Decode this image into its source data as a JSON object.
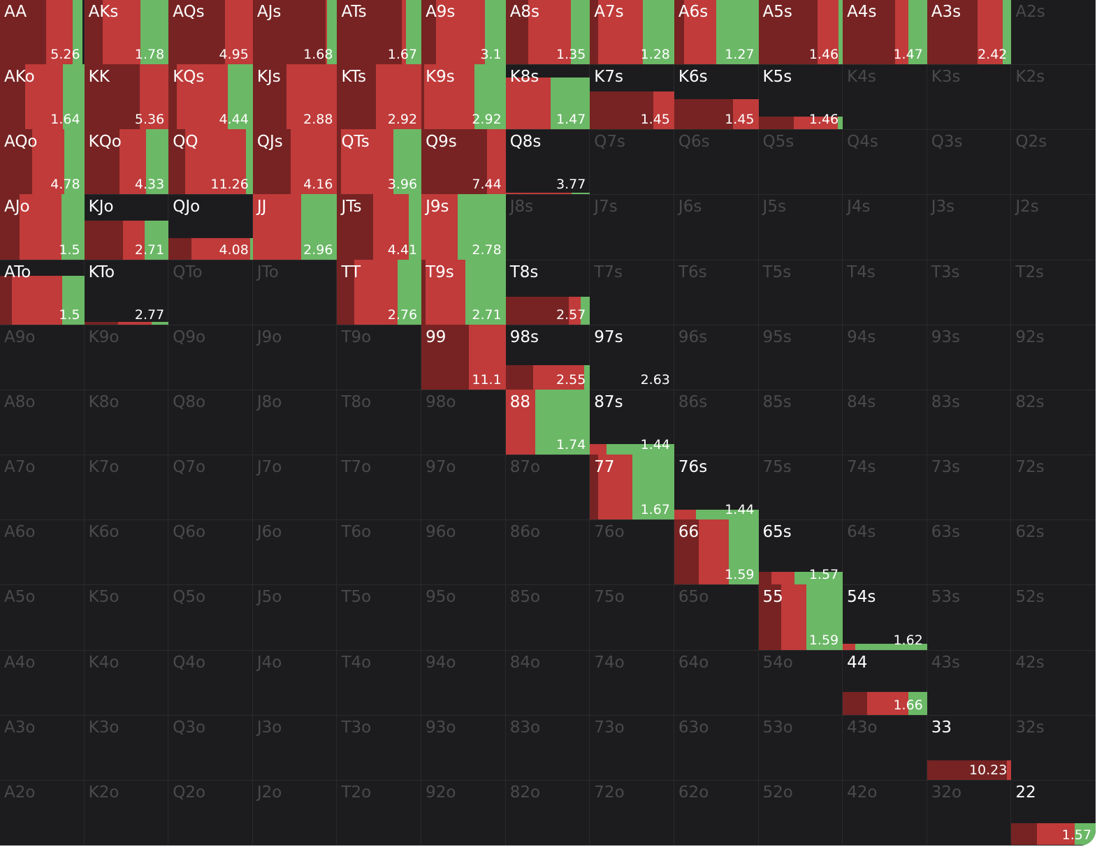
{
  "grid": {
    "rows": [
      [
        {
          "label": "AA",
          "value": 5.26,
          "height": 1,
          "mix": [
            0.55,
            0.31,
            0.12
          ]
        },
        {
          "label": "AKs",
          "value": 1.78,
          "height": 1,
          "mix": [
            0.22,
            0.45,
            0.33
          ]
        },
        {
          "label": "AQs",
          "value": 4.95,
          "height": 1,
          "mix": [
            0.67,
            0.33,
            0
          ]
        },
        {
          "label": "AJs",
          "value": 1.68,
          "height": 1,
          "mix": [
            0.86,
            0.02,
            0.12
          ]
        },
        {
          "label": "ATs",
          "value": 1.67,
          "height": 1,
          "mix": [
            0.77,
            0.05,
            0.18
          ]
        },
        {
          "label": "A9s",
          "value": 3.1,
          "height": 1,
          "mix": [
            0.17,
            0.58,
            0.25
          ]
        },
        {
          "label": "A8s",
          "value": 1.35,
          "height": 1,
          "mix": [
            0.27,
            0.5,
            0.23
          ]
        },
        {
          "label": "A7s",
          "value": 1.28,
          "height": 1,
          "mix": [
            0.1,
            0.53,
            0.37
          ]
        },
        {
          "label": "A6s",
          "value": 1.27,
          "height": 1,
          "mix": [
            0.12,
            0.38,
            0.5
          ]
        },
        {
          "label": "A5s",
          "value": 1.46,
          "height": 1,
          "mix": [
            0.7,
            0.25,
            0.05
          ]
        },
        {
          "label": "A4s",
          "value": 1.47,
          "height": 1,
          "mix": [
            0.62,
            0.16,
            0.22
          ]
        },
        {
          "label": "A3s",
          "value": 2.42,
          "height": 1,
          "mix": [
            0.6,
            0.3,
            0.1
          ]
        },
        {
          "label": "A2s"
        }
      ],
      [
        {
          "label": "AKo",
          "value": 1.64,
          "height": 1,
          "mix": [
            0.3,
            0.45,
            0.25
          ]
        },
        {
          "label": "KK",
          "value": 5.36,
          "height": 1,
          "mix": [
            0.66,
            0.34,
            0
          ]
        },
        {
          "label": "KQs",
          "value": 4.44,
          "height": 1,
          "mix": [
            0.1,
            0.6,
            0.3
          ]
        },
        {
          "label": "KJs",
          "value": 2.88,
          "height": 1,
          "mix": [
            0.4,
            0.6,
            0
          ]
        },
        {
          "label": "KTs",
          "value": 2.92,
          "height": 1,
          "mix": [
            0.46,
            0.54,
            0
          ]
        },
        {
          "label": "K9s",
          "value": 2.92,
          "height": 1,
          "mix": [
            0.03,
            0.6,
            0.37
          ]
        },
        {
          "label": "K8s",
          "value": 1.47,
          "height": 0.8,
          "mix": [
            0,
            0.53,
            0.47
          ]
        },
        {
          "label": "K7s",
          "value": 1.45,
          "height": 0.58,
          "mix": [
            0.75,
            0.25,
            0
          ]
        },
        {
          "label": "K6s",
          "value": 1.45,
          "height": 0.46,
          "mix": [
            0.7,
            0.3,
            0
          ]
        },
        {
          "label": "K5s",
          "value": 1.46,
          "height": 0.2,
          "mix": [
            0.42,
            0.52,
            0.06
          ]
        },
        {
          "label": "K4s"
        },
        {
          "label": "K3s"
        },
        {
          "label": "K2s"
        }
      ],
      [
        {
          "label": "AQo",
          "value": 4.78,
          "height": 1,
          "mix": [
            0.38,
            0.38,
            0.24
          ]
        },
        {
          "label": "KQo",
          "value": 4.33,
          "height": 1,
          "mix": [
            0.42,
            0.31,
            0.27
          ]
        },
        {
          "label": "QQ",
          "value": 11.26,
          "height": 1,
          "mix": [
            0.2,
            0.72,
            0.08
          ]
        },
        {
          "label": "QJs",
          "value": 4.16,
          "height": 1,
          "mix": [
            0.45,
            0.55,
            0
          ]
        },
        {
          "label": "QTs",
          "value": 3.96,
          "height": 1,
          "mix": [
            0.05,
            0.62,
            0.33
          ]
        },
        {
          "label": "Q9s",
          "value": 7.44,
          "height": 1,
          "mix": [
            0.78,
            0.22,
            0
          ]
        },
        {
          "label": "Q8s",
          "value": 3.77,
          "height": 0.03,
          "mix": [
            0,
            0.78,
            0.22
          ]
        },
        {
          "label": "Q7s"
        },
        {
          "label": "Q6s"
        },
        {
          "label": "Q5s"
        },
        {
          "label": "Q4s"
        },
        {
          "label": "Q3s"
        },
        {
          "label": "Q2s"
        }
      ],
      [
        {
          "label": "AJo",
          "value": 1.5,
          "height": 1,
          "mix": [
            0.23,
            0.5,
            0.27
          ]
        },
        {
          "label": "KJo",
          "value": 2.71,
          "height": 0.6,
          "mix": [
            0.46,
            0.26,
            0.28
          ]
        },
        {
          "label": "QJo",
          "value": 4.08,
          "height": 0.33,
          "mix": [
            0.27,
            0.7,
            0.03
          ]
        },
        {
          "label": "JJ",
          "value": 2.96,
          "height": 1,
          "mix": [
            0,
            0.57,
            0.43
          ]
        },
        {
          "label": "JTs",
          "value": 4.41,
          "height": 1,
          "mix": [
            0.43,
            0.42,
            0.15
          ]
        },
        {
          "label": "J9s",
          "value": 2.78,
          "height": 1,
          "mix": [
            0,
            0.43,
            0.57
          ]
        },
        {
          "label": "J8s"
        },
        {
          "label": "J7s"
        },
        {
          "label": "J6s"
        },
        {
          "label": "J5s"
        },
        {
          "label": "J4s"
        },
        {
          "label": "J3s"
        },
        {
          "label": "J2s"
        }
      ],
      [
        {
          "label": "ATo",
          "value": 1.5,
          "height": 0.75,
          "mix": [
            0.14,
            0.6,
            0.26
          ]
        },
        {
          "label": "KTo",
          "value": 2.77,
          "height": 0.04,
          "mix": [
            0.4,
            0.4,
            0.2
          ]
        },
        {
          "label": "QTo"
        },
        {
          "label": "JTo"
        },
        {
          "label": "TT",
          "value": 2.76,
          "height": 1,
          "mix": [
            0.2,
            0.52,
            0.28
          ]
        },
        {
          "label": "T9s",
          "value": 2.71,
          "height": 1,
          "mix": [
            0.05,
            0.47,
            0.48
          ]
        },
        {
          "label": "T8s",
          "value": 2.57,
          "height": 0.43,
          "mix": [
            0.75,
            0.14,
            0.11
          ]
        },
        {
          "label": "T7s"
        },
        {
          "label": "T6s"
        },
        {
          "label": "T5s"
        },
        {
          "label": "T4s"
        },
        {
          "label": "T3s"
        },
        {
          "label": "T2s"
        }
      ],
      [
        {
          "label": "A9o"
        },
        {
          "label": "K9o"
        },
        {
          "label": "Q9o"
        },
        {
          "label": "J9o"
        },
        {
          "label": "T9o"
        },
        {
          "label": "99",
          "value": 11.1,
          "height": 1,
          "mix": [
            0.56,
            0.44,
            0
          ]
        },
        {
          "label": "98s",
          "value": 2.55,
          "height": 0.37,
          "mix": [
            0.33,
            0.6,
            0.07
          ]
        },
        {
          "label": "97s",
          "value": 2.63,
          "height": 0,
          "mix": [
            0,
            0,
            0
          ]
        },
        {
          "label": "96s"
        },
        {
          "label": "95s"
        },
        {
          "label": "94s"
        },
        {
          "label": "93s"
        },
        {
          "label": "92s"
        }
      ],
      [
        {
          "label": "A8o"
        },
        {
          "label": "K8o"
        },
        {
          "label": "Q8o"
        },
        {
          "label": "J8o"
        },
        {
          "label": "T8o"
        },
        {
          "label": "98o"
        },
        {
          "label": "88",
          "value": 1.74,
          "height": 1,
          "mix": [
            0,
            0.35,
            0.65
          ]
        },
        {
          "label": "87s",
          "value": 1.44,
          "height": 0.16,
          "mix": [
            0,
            0.2,
            0.8
          ]
        },
        {
          "label": "86s"
        },
        {
          "label": "85s"
        },
        {
          "label": "84s"
        },
        {
          "label": "83s"
        },
        {
          "label": "82s"
        }
      ],
      [
        {
          "label": "A7o"
        },
        {
          "label": "K7o"
        },
        {
          "label": "Q7o"
        },
        {
          "label": "J7o"
        },
        {
          "label": "T7o"
        },
        {
          "label": "97o"
        },
        {
          "label": "87o"
        },
        {
          "label": "77",
          "value": 1.67,
          "height": 1,
          "mix": [
            0.1,
            0.4,
            0.5
          ]
        },
        {
          "label": "76s",
          "value": 1.44,
          "height": 0.15,
          "mix": [
            0,
            0.26,
            0.74
          ]
        },
        {
          "label": "75s"
        },
        {
          "label": "74s"
        },
        {
          "label": "73s"
        },
        {
          "label": "72s"
        }
      ],
      [
        {
          "label": "A6o"
        },
        {
          "label": "K6o"
        },
        {
          "label": "Q6o"
        },
        {
          "label": "J6o"
        },
        {
          "label": "T6o"
        },
        {
          "label": "96o"
        },
        {
          "label": "86o"
        },
        {
          "label": "76o"
        },
        {
          "label": "66",
          "value": 1.59,
          "height": 1,
          "mix": [
            0.29,
            0.36,
            0.35
          ]
        },
        {
          "label": "65s",
          "value": 1.57,
          "height": 0.2,
          "mix": [
            0.15,
            0.28,
            0.57
          ]
        },
        {
          "label": "64s"
        },
        {
          "label": "63s"
        },
        {
          "label": "62s"
        }
      ],
      [
        {
          "label": "A5o"
        },
        {
          "label": "K5o"
        },
        {
          "label": "Q5o"
        },
        {
          "label": "J5o"
        },
        {
          "label": "T5o"
        },
        {
          "label": "95o"
        },
        {
          "label": "85o"
        },
        {
          "label": "75o"
        },
        {
          "label": "65o"
        },
        {
          "label": "55",
          "value": 1.59,
          "height": 1,
          "mix": [
            0.27,
            0.3,
            0.43
          ]
        },
        {
          "label": "54s",
          "value": 1.62,
          "height": 0.09,
          "mix": [
            0,
            0.15,
            0.85
          ]
        },
        {
          "label": "53s"
        },
        {
          "label": "52s"
        }
      ],
      [
        {
          "label": "A4o"
        },
        {
          "label": "K4o"
        },
        {
          "label": "Q4o"
        },
        {
          "label": "J4o"
        },
        {
          "label": "T4o"
        },
        {
          "label": "94o"
        },
        {
          "label": "84o"
        },
        {
          "label": "74o"
        },
        {
          "label": "64o"
        },
        {
          "label": "54o"
        },
        {
          "label": "44",
          "value": 1.66,
          "height": 0.35,
          "mix": [
            0.29,
            0.49,
            0.22
          ]
        },
        {
          "label": "43s"
        },
        {
          "label": "42s"
        }
      ],
      [
        {
          "label": "A3o"
        },
        {
          "label": "K3o"
        },
        {
          "label": "Q3o"
        },
        {
          "label": "J3o"
        },
        {
          "label": "T3o"
        },
        {
          "label": "93o"
        },
        {
          "label": "83o"
        },
        {
          "label": "73o"
        },
        {
          "label": "63o"
        },
        {
          "label": "53o"
        },
        {
          "label": "43o"
        },
        {
          "label": "33",
          "value": 10.23,
          "height": 0.3,
          "mix": [
            0.95,
            0.05,
            0
          ]
        },
        {
          "label": "32s"
        }
      ],
      [
        {
          "label": "A2o"
        },
        {
          "label": "K2o"
        },
        {
          "label": "Q2o"
        },
        {
          "label": "J2o"
        },
        {
          "label": "T2o"
        },
        {
          "label": "92o"
        },
        {
          "label": "82o"
        },
        {
          "label": "72o"
        },
        {
          "label": "62o"
        },
        {
          "label": "52o"
        },
        {
          "label": "42o"
        },
        {
          "label": "32o"
        },
        {
          "label": "22",
          "value": 1.57,
          "height": 0.33,
          "mix": [
            0.3,
            0.45,
            0.25
          ]
        }
      ]
    ]
  }
}
